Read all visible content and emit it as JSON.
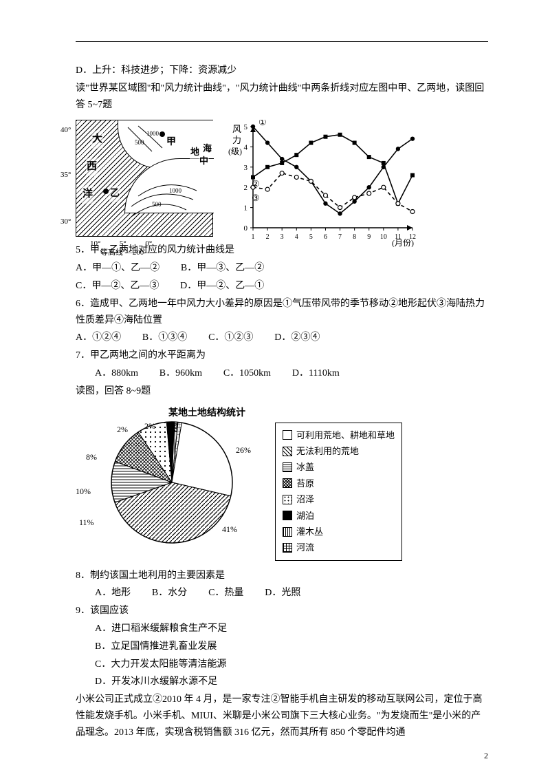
{
  "intro_d": "D．上升：科技进步；下降：资源减少",
  "intro_text": "读\"世界某区域图\"和\"风力统计曲线\"，\"风力统计曲线\"中两条折线对应左图中甲、乙两地，读图回答 5~7题",
  "map": {
    "bg_color": "#ffffff",
    "labels": {
      "da": "大",
      "xi": "西",
      "yang": "洋",
      "jia": "甲",
      "yi": "乙",
      "di": "地",
      "zhong": "中",
      "hai": "海",
      "lat40": "40°",
      "lat35": "35°",
      "lat30": "30°",
      "lon10": "10°",
      "lon5": "5°",
      "lon0": "0°",
      "contour_label": "等高线",
      "contour_200": "200"
    }
  },
  "wind_chart": {
    "type": "line",
    "y_title_1": "风",
    "y_title_2": "力",
    "y_title_3": "(级)",
    "x_title": "(月份)",
    "x_values": [
      1,
      2,
      3,
      4,
      5,
      6,
      7,
      8,
      9,
      10,
      11,
      12
    ],
    "ylim": [
      0,
      5
    ],
    "ytick_step": 1,
    "background_color": "#ffffff",
    "axis_color": "#000000",
    "series": [
      {
        "name": "①",
        "marker": "circle-filled",
        "dash": "none",
        "color": "#000000",
        "values": [
          5.0,
          4.2,
          3.4,
          3.0,
          2.3,
          1.2,
          0.7,
          1.3,
          2.0,
          3.0,
          3.9,
          4.4
        ]
      },
      {
        "name": "②",
        "marker": "square-filled",
        "dash": "none",
        "color": "#000000",
        "values": [
          2.5,
          3.0,
          3.2,
          3.6,
          4.2,
          4.5,
          4.6,
          4.2,
          3.5,
          3.2,
          1.2,
          2.6
        ]
      },
      {
        "name": "③",
        "marker": "circle-open",
        "dash": "dashed",
        "color": "#000000",
        "values": [
          2.0,
          1.9,
          2.7,
          2.5,
          2.3,
          1.6,
          1.0,
          1.5,
          1.7,
          2.0,
          1.2,
          0.8
        ]
      }
    ],
    "annotations": {
      "①": "①",
      "②": "②",
      "③": "③"
    }
  },
  "q5": {
    "stem": "5．甲、乙两地对应的风力统计曲线是",
    "A": "A．甲—①、乙—②",
    "B": "B．甲—③、乙—②",
    "C": "C．甲—②、乙—③",
    "D": "D．甲—②、乙—①"
  },
  "q6": {
    "stem": "6．造成甲、乙两地一年中风力大小差异的原因是①气压带风带的季节移动②地形起伏③海陆热力性质差异④海陆位置",
    "A": "A．①②④",
    "B": "B．①③④",
    "C": "C．①②③",
    "D": "D．②③④"
  },
  "q7": {
    "stem": "7．甲乙两地之间的水平距离为",
    "A": "A．880km",
    "B": "B．960km",
    "C": "C．1050km",
    "D": "D．1110km"
  },
  "intro_89": "读图，回答 8~9题",
  "pie": {
    "type": "pie",
    "title": "某地土地结构统计图",
    "slices": [
      {
        "label": "可利用荒地、耕地和草地",
        "value": 26,
        "fill": "white"
      },
      {
        "label": "无法利用的荒地",
        "value": 41,
        "fill": "diag"
      },
      {
        "label": "冰盖",
        "value": 11,
        "fill": "horiz"
      },
      {
        "label": "苔原",
        "value": 10,
        "fill": "cross"
      },
      {
        "label": "沼泽",
        "value": 8,
        "fill": "dots"
      },
      {
        "label": "湖泊",
        "value": 2,
        "fill": "black"
      },
      {
        "label": "灌木丛",
        "value": 1,
        "fill": "vert"
      },
      {
        "label": "河流",
        "value": 1,
        "fill": "grid"
      }
    ],
    "label_fontsize": 12,
    "colors": {
      "bg": "#ffffff",
      "border": "#000000"
    },
    "displayed_labels": [
      "26%",
      "41%",
      "11%",
      "10%",
      "8%",
      "2%",
      "2%"
    ]
  },
  "legend_items": [
    {
      "sym": "□",
      "text": "可利用荒地、耕地和草地",
      "fill": "white"
    },
    {
      "sym": "▨",
      "text": "无法利用的荒地",
      "fill": "diag"
    },
    {
      "sym": "▤",
      "text": "冰盖",
      "fill": "horiz"
    },
    {
      "sym": "▩",
      "text": "苔原",
      "fill": "cross"
    },
    {
      "sym": "⊡",
      "text": "沼泽",
      "fill": "dots"
    },
    {
      "sym": "■",
      "text": "湖泊",
      "fill": "black"
    },
    {
      "sym": "▥",
      "text": "灌木丛",
      "fill": "vert"
    },
    {
      "sym": "▦",
      "text": "河流",
      "fill": "grid"
    }
  ],
  "q8": {
    "stem": "8．制约该国土地利用的主要因素是",
    "A": "A．地形",
    "B": "B．水分",
    "C": "C．热量",
    "D": "D．光照"
  },
  "q9": {
    "stem": "9．该国应该",
    "A": "A．进口稻米缓解粮食生产不足",
    "B": "B．立足国情推进乳畜业发展",
    "C": "C．大力开发太阳能等清洁能源",
    "D": "D．开发冰川水缓解水源不足"
  },
  "tail": "小米公司正式成立②2010 年 4 月，是一家专注②智能手机自主研发的移动互联网公司，定位于高性能发烧手机。小米手机、MIUI、米聊是小米公司旗下三大核心业务。\"为发烧而生\"是小米的产品理念。2013 年底，实现含税销售额 316 亿元，然而其所有 850 个零配件均通",
  "page_number": "2"
}
